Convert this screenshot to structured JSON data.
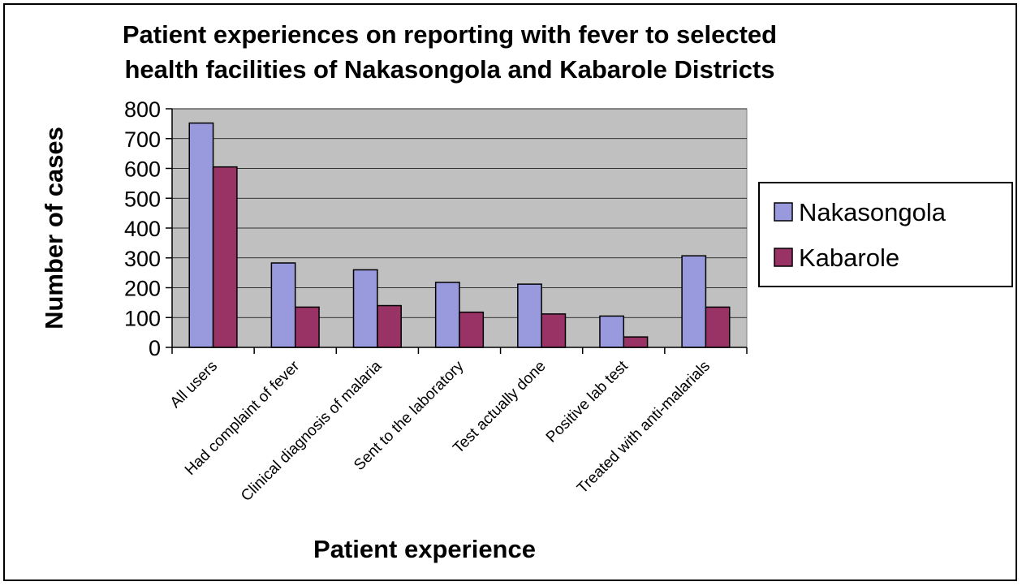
{
  "chart_data": {
    "type": "bar",
    "title_lines": [
      "Patient experiences on reporting with fever to selected",
      "health facilities of Nakasongola and Kabarole Districts"
    ],
    "xlabel": "Patient experience",
    "ylabel": "Number of cases",
    "ylim": [
      0,
      800
    ],
    "yticks": [
      0,
      100,
      200,
      300,
      400,
      500,
      600,
      700,
      800
    ],
    "grid": true,
    "legend": "right",
    "categories": [
      "All users",
      "Had complaint of fever",
      "Clinical diagnosis of malaria",
      "Sent to the laboratory",
      "Test actually done",
      "Positive lab test",
      "Treated with anti-malarials"
    ],
    "series": [
      {
        "name": "Nakasongola",
        "color": "#9999dd",
        "values": [
          752,
          283,
          260,
          218,
          212,
          105,
          307
        ]
      },
      {
        "name": "Kabarole",
        "color": "#993366",
        "values": [
          605,
          135,
          140,
          118,
          112,
          35,
          135
        ]
      }
    ],
    "plot_background": "#c0c0c0"
  }
}
